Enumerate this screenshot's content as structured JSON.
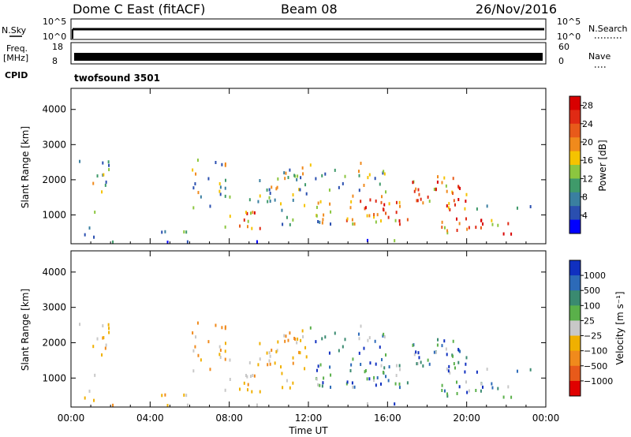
{
  "header": {
    "title": "Dome C East (fitACF)",
    "beam": "Beam 08",
    "date": "26/Nov/2016"
  },
  "nsky_panel": {
    "left_label": "N.Sky",
    "left_ticks": [
      "10^5",
      "10^0"
    ],
    "right_label": "N.Search",
    "right_ticks": [
      "10^5",
      "10^0"
    ]
  },
  "freq_panel": {
    "left_label_1": "Freq.",
    "left_label_2": "[MHz]",
    "left_ticks": [
      "18",
      "8"
    ],
    "right_label": "Nave",
    "right_ticks": [
      "60",
      "0"
    ]
  },
  "cpid": {
    "label": "CPID",
    "program": "twofsound 3501"
  },
  "colors": {
    "power_scale": [
      "#0000ff",
      "#2a4fb0",
      "#3a7fa0",
      "#3f9a6a",
      "#8cc63f",
      "#f5c300",
      "#f08a1c",
      "#e85a1a",
      "#e02a14",
      "#d80000"
    ],
    "velocity_scale": [
      "#1030c0",
      "#2c6ab8",
      "#3a8a70",
      "#5ab04a",
      "#c8c8c8",
      "#f0b000",
      "#f08a1c",
      "#e85a1a",
      "#e00000"
    ]
  },
  "chart_data": [
    {
      "type": "heatmap",
      "name": "power",
      "ylabel": "Slant Range [km]",
      "xlabel": "",
      "x_ticks": [
        "00:00",
        "04:00",
        "08:00",
        "12:00",
        "16:00",
        "20:00",
        "00:00"
      ],
      "x_range_hours": [
        0,
        24
      ],
      "y_ticks": [
        1000,
        2000,
        3000,
        4000
      ],
      "ylim": [
        180,
        4600
      ],
      "colorbar": {
        "label": "Power [dB]",
        "ticks": [
          4,
          8,
          12,
          16,
          20,
          24,
          28
        ],
        "range": [
          0,
          30
        ]
      }
    },
    {
      "type": "heatmap",
      "name": "velocity",
      "ylabel": "Slant Range [km]",
      "xlabel": "Time UT",
      "x_ticks": [
        "00:00",
        "04:00",
        "08:00",
        "12:00",
        "16:00",
        "20:00",
        "00:00"
      ],
      "x_range_hours": [
        0,
        24
      ],
      "y_ticks": [
        1000,
        2000,
        3000,
        4000
      ],
      "ylim": [
        180,
        4600
      ],
      "colorbar": {
        "label": "Velocity [m s⁻¹]",
        "ticks": [
          "1000",
          "500",
          "100",
          "25",
          "−25",
          "−100",
          "−500",
          "−1000"
        ]
      }
    }
  ]
}
